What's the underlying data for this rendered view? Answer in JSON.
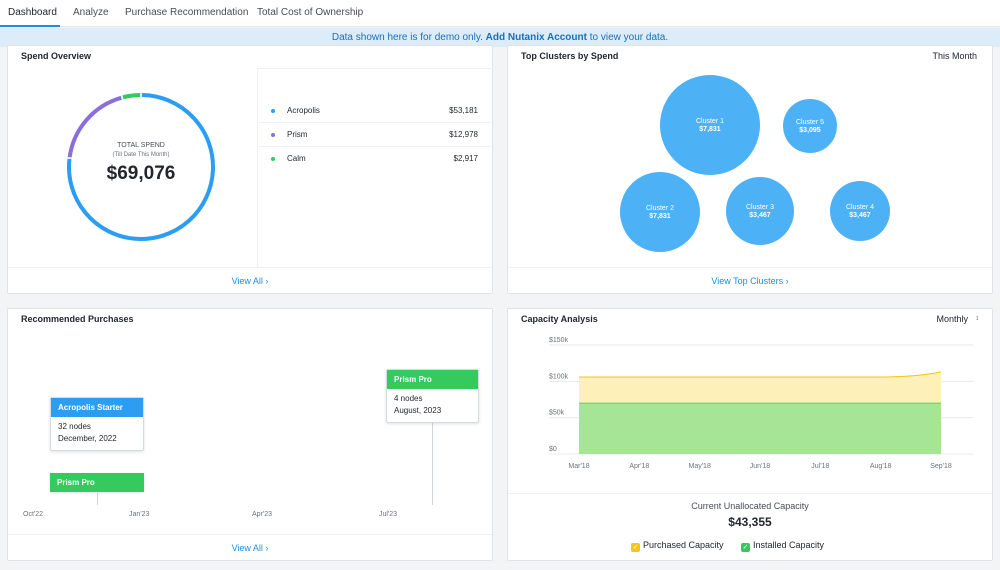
{
  "tabs": [
    {
      "label": "Dashboard"
    },
    {
      "label": "Analyze"
    },
    {
      "label": "Purchase Recommendation"
    },
    {
      "label": "Total Cost of Ownership"
    }
  ],
  "banner": {
    "text": "Data shown here is for demo only.",
    "link": "Add Nutanix Account",
    "suffix": "to view your data."
  },
  "spend": {
    "title": "Spend Overview",
    "total_label": "TOTAL SPEND",
    "total_sub": "(Till Date This Month)",
    "total_value": "$69,076",
    "items": [
      {
        "name": "Acropolis",
        "value": "$53,181",
        "color": "#2b9df2"
      },
      {
        "name": "Prism",
        "value": "$12,978",
        "color": "#8a6fdc"
      },
      {
        "name": "Calm",
        "value": "$2,917",
        "color": "#2ecc5c"
      }
    ],
    "footer": "View All ›"
  },
  "clusters": {
    "title": "Top Clusters by Spend",
    "period": "This Month",
    "items": [
      {
        "name": "Cluster 1",
        "value": "$7,831"
      },
      {
        "name": "Cluster 5",
        "value": "$3,095"
      },
      {
        "name": "Cluster 2",
        "value": "$7,831"
      },
      {
        "name": "Cluster 3",
        "value": "$3,467"
      },
      {
        "name": "Cluster 4",
        "value": "$3,467"
      }
    ],
    "color": "#4db1f5",
    "footer": "View Top Clusters ›"
  },
  "recommended": {
    "title": "Recommended Purchases",
    "items": [
      {
        "name": "Acropolis Starter",
        "nodes": "32 nodes",
        "date": "December, 2022",
        "color": "#2b9df2"
      },
      {
        "name": "Prism Pro",
        "color": "#35c95e"
      },
      {
        "name": "Prism Pro",
        "nodes": "4 nodes",
        "date": "August, 2023",
        "color": "#35c95e"
      }
    ],
    "axis": [
      "Oct'22",
      "Jan'23",
      "Apr'23",
      "Jul'23"
    ],
    "footer": "View All ›"
  },
  "capacity": {
    "title": "Capacity Analysis",
    "period": "Monthly",
    "unallocated_label": "Current Unallocated Capacity",
    "unallocated_value": "$43,355",
    "legend": [
      {
        "name": "Purchased Capacity",
        "color": "#f5c518"
      },
      {
        "name": "Installed Capacity",
        "color": "#35c95e"
      }
    ]
  },
  "chart_data": {
    "type": "area",
    "categories": [
      "Mar'18",
      "Apr'18",
      "May'18",
      "Jun'18",
      "Jul'18",
      "Aug'18",
      "Sep'18"
    ],
    "yticks": [
      "$0",
      "$50k",
      "$100k",
      "$150k"
    ],
    "ylim": [
      0,
      150000
    ],
    "series": [
      {
        "name": "Purchased Capacity",
        "values": [
          106000,
          106000,
          106000,
          106000,
          106000,
          106000,
          113000
        ],
        "color": "#f5c518"
      },
      {
        "name": "Installed Capacity",
        "values": [
          70000,
          70000,
          70000,
          70000,
          70000,
          70000,
          70000
        ],
        "color": "#35c95e"
      }
    ]
  }
}
